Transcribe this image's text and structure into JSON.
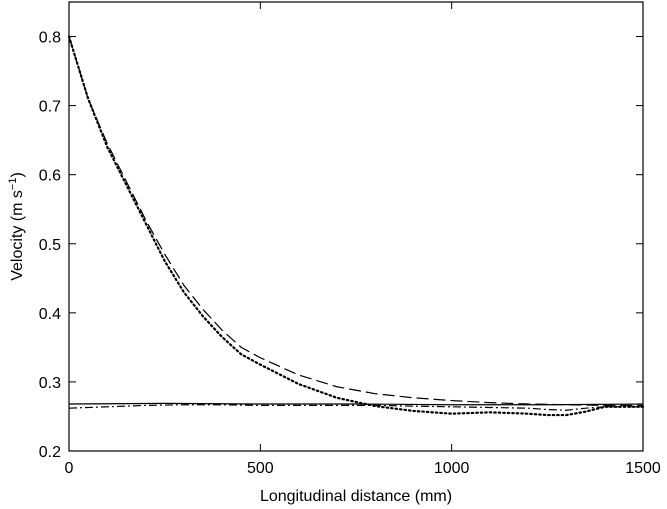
{
  "chart_data": {
    "type": "line",
    "title": "",
    "xlabel": "Longitudinal distance (mm)",
    "ylabel": {
      "base": "Velocity (m s",
      "sup": "−1",
      "close": ")"
    },
    "xlim": [
      0,
      1500
    ],
    "ylim": [
      0.2,
      0.85
    ],
    "xticks": [
      0,
      500,
      1000,
      1500
    ],
    "xtick_labels": [
      "0",
      "500",
      "1000",
      "1500"
    ],
    "yticks": [
      0.2,
      0.3,
      0.4,
      0.5,
      0.6,
      0.7,
      0.8
    ],
    "ytick_labels": [
      "0.2",
      "0.3",
      "0.4",
      "0.5",
      "0.6",
      "0.7",
      "0.8"
    ],
    "grid": false,
    "legend": "none",
    "series": [
      {
        "style": "dashed",
        "x": [
          0,
          50,
          100,
          150,
          200,
          250,
          300,
          350,
          400,
          450,
          500,
          600,
          700,
          800,
          900,
          1000,
          1100,
          1200,
          1300,
          1400,
          1500
        ],
        "y": [
          0.8,
          0.71,
          0.645,
          0.59,
          0.535,
          0.485,
          0.44,
          0.405,
          0.375,
          0.35,
          0.335,
          0.31,
          0.293,
          0.283,
          0.277,
          0.273,
          0.27,
          0.268,
          0.267,
          0.266,
          0.266
        ]
      },
      {
        "style": "dotted",
        "x": [
          0,
          50,
          100,
          150,
          200,
          250,
          300,
          350,
          400,
          450,
          500,
          600,
          700,
          800,
          900,
          1000,
          1100,
          1200,
          1250,
          1300,
          1350,
          1400,
          1500
        ],
        "y": [
          0.8,
          0.71,
          0.64,
          0.585,
          0.53,
          0.475,
          0.43,
          0.395,
          0.365,
          0.34,
          0.325,
          0.297,
          0.277,
          0.265,
          0.258,
          0.254,
          0.256,
          0.254,
          0.252,
          0.252,
          0.257,
          0.264,
          0.264
        ]
      },
      {
        "style": "solid",
        "x": [
          0,
          250,
          500,
          750,
          1000,
          1250,
          1500
        ],
        "y": [
          0.268,
          0.269,
          0.268,
          0.268,
          0.267,
          0.267,
          0.268
        ]
      },
      {
        "style": "dashdot",
        "x": [
          0,
          100,
          200,
          300,
          400,
          500,
          600,
          700,
          800,
          900,
          1000,
          1100,
          1200,
          1250,
          1300,
          1350,
          1400,
          1500
        ],
        "y": [
          0.262,
          0.264,
          0.266,
          0.267,
          0.267,
          0.266,
          0.266,
          0.266,
          0.266,
          0.265,
          0.264,
          0.263,
          0.262,
          0.26,
          0.259,
          0.262,
          0.264,
          0.264
        ]
      }
    ]
  }
}
